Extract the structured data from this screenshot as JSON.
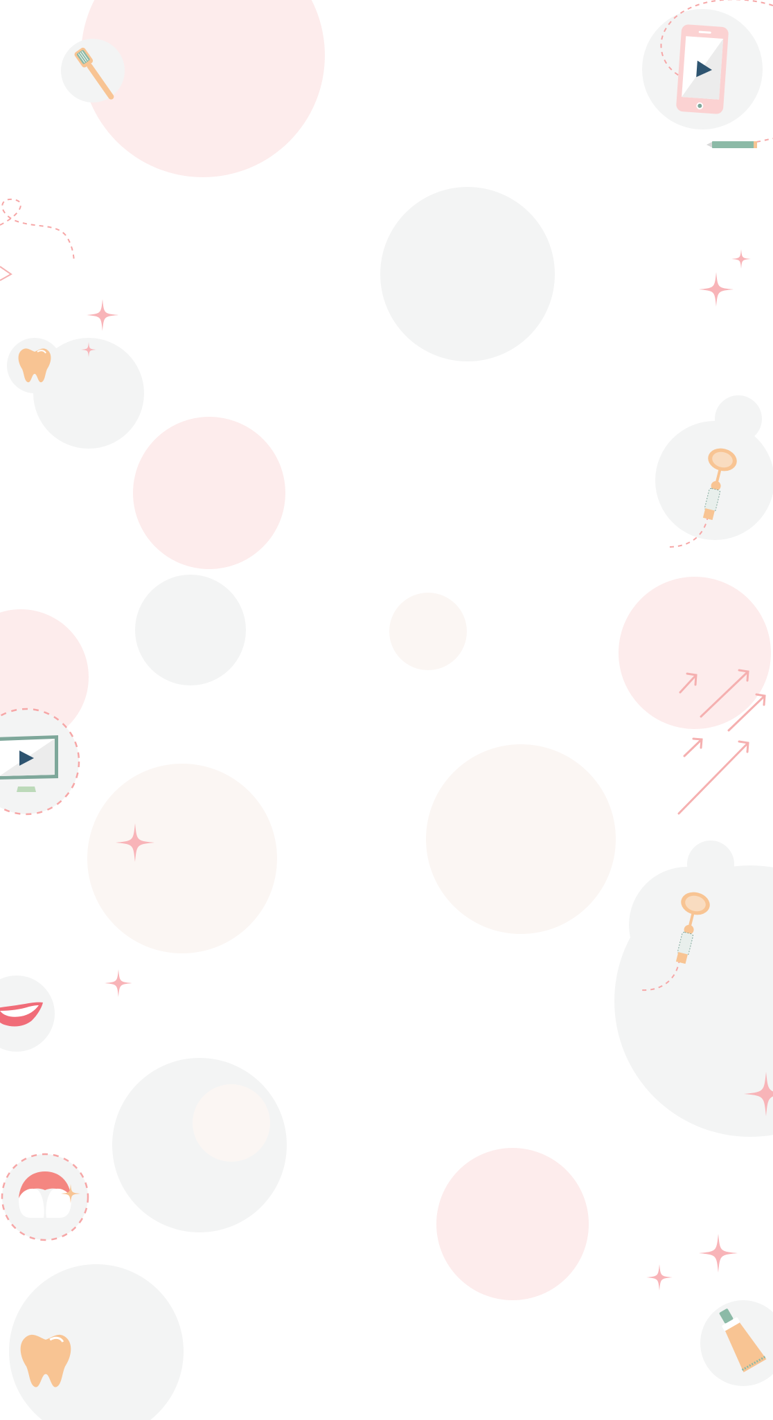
{
  "background": {
    "base_color": "#ffffff",
    "bubble_pink": "#fdecec",
    "bubble_grey": "#f3f4f4",
    "bubble_cream": "#fbf6f3"
  },
  "palette": {
    "sparkle": "#f8b4b8",
    "dashed_trail": "#f6a6a6",
    "tooth": "#f8c493",
    "tooth_shadow": "#f3b27a",
    "screen_frame_teal": "#7ea79a",
    "screen_frame_pink": "#fbd2d2",
    "screen_fill": "#ececec",
    "play_triangle": "#2e5470",
    "lips": "#f06c78",
    "gum": "#f48681",
    "toothpaste_cap": "#8cbaa7",
    "tube_body": "#f8c493",
    "pencil": "#8cbaa7",
    "arrow_outline": "#f5b0b0"
  },
  "icons": [
    "toothbrush-icon",
    "smartphone-play-icon",
    "pencil-icon",
    "tooth-icon",
    "dental-mirror-icon",
    "monitor-play-icon",
    "smile-lips-icon",
    "teeth-gum-icon",
    "growth-arrows-icon",
    "toothpaste-tube-icon",
    "sparkle-icon"
  ]
}
